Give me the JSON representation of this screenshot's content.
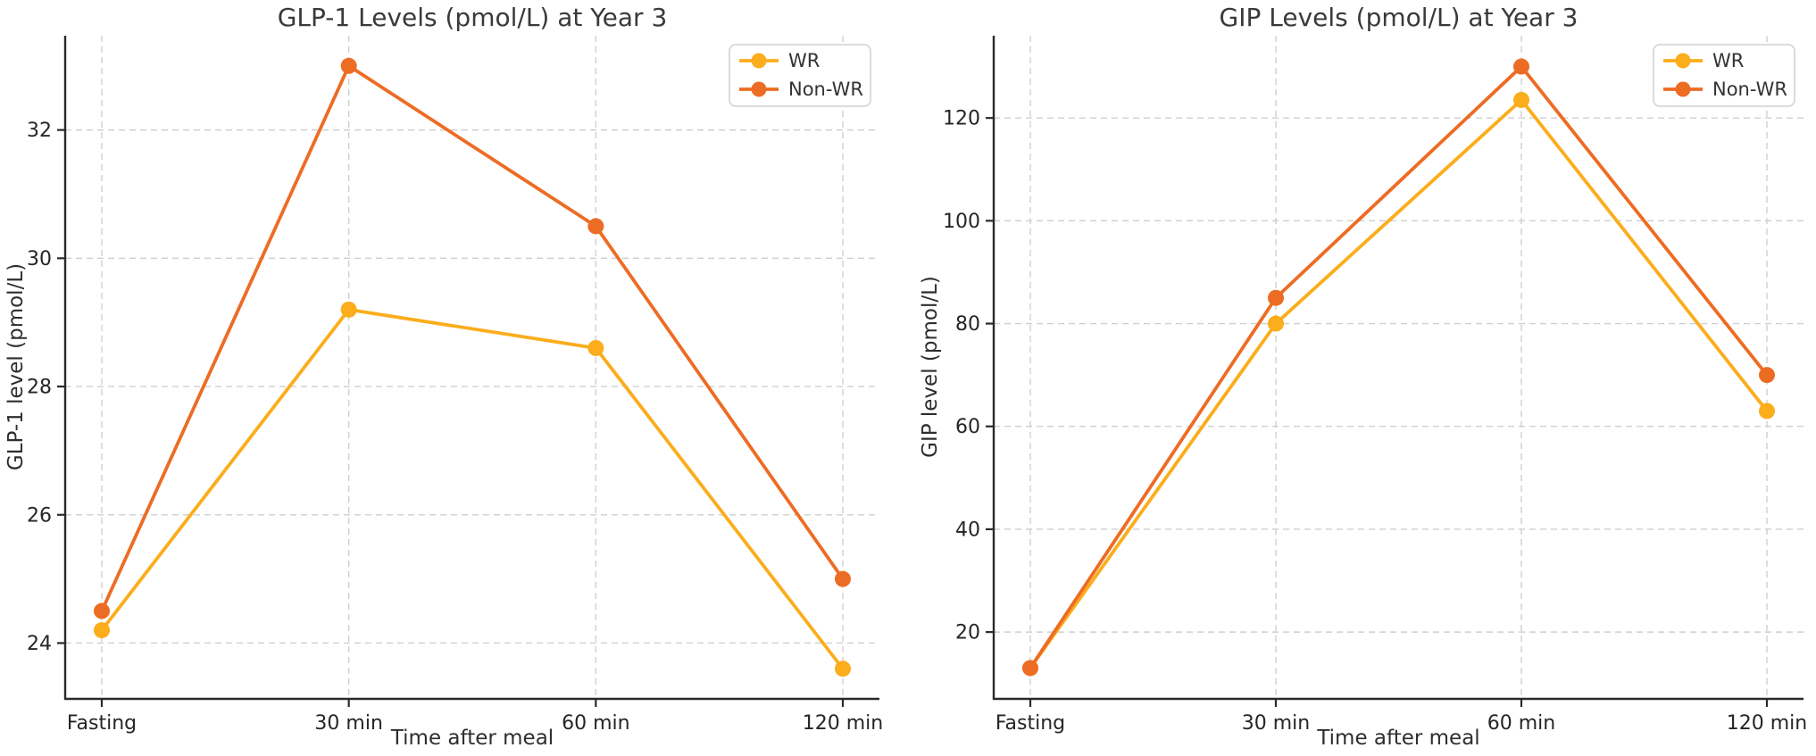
{
  "figure": {
    "background": "#ffffff",
    "n_subplots": 2
  },
  "styles": {
    "grid_color": "#cfcfcf",
    "axis_color": "#2a2a2a",
    "tick_label_color": "#262626",
    "title_color": "#3a3a3a",
    "legend_border_color": "#d2d2d2",
    "legend_background": "#ffffff",
    "wr_color": "#FBAD1B",
    "non_wr_color": "#ED6C24"
  },
  "chart_data": [
    {
      "id": "glp1",
      "type": "line",
      "title": "GLP-1 Levels (pmol/L) at Year 3",
      "xlabel": "Time after meal",
      "ylabel": "GLP-1 level (pmol/L)",
      "categories": [
        "Fasting",
        "30 min",
        "60 min",
        "120 min"
      ],
      "series": [
        {
          "name": "WR",
          "color": "#FBAD1B",
          "values": [
            24.2,
            29.2,
            28.6,
            23.6
          ]
        },
        {
          "name": "Non-WR",
          "color": "#ED6C24",
          "values": [
            24.5,
            33.0,
            30.5,
            25.0
          ]
        }
      ],
      "yticks": [
        24,
        26,
        28,
        30,
        32
      ],
      "ylim": [
        23.13,
        33.47
      ],
      "grid": true,
      "grid_style": "dashed",
      "legend_position": "upper right",
      "legend_labels": [
        "WR",
        "Non-WR"
      ]
    },
    {
      "id": "gip",
      "type": "line",
      "title": "GIP Levels (pmol/L) at Year 3",
      "xlabel": "Time after meal",
      "ylabel": "GIP level (pmol/L)",
      "categories": [
        "Fasting",
        "30 min",
        "60 min",
        "120 min"
      ],
      "series": [
        {
          "name": "WR",
          "color": "#FBAD1B",
          "values": [
            13,
            80,
            123.5,
            63
          ]
        },
        {
          "name": "Non-WR",
          "color": "#ED6C24",
          "values": [
            13,
            85,
            130,
            70
          ]
        }
      ],
      "yticks": [
        20,
        40,
        60,
        80,
        100,
        120
      ],
      "ylim": [
        7.0,
        136.0
      ],
      "grid": true,
      "grid_style": "dashed",
      "legend_position": "upper right",
      "legend_labels": [
        "WR",
        "Non-WR"
      ]
    }
  ]
}
